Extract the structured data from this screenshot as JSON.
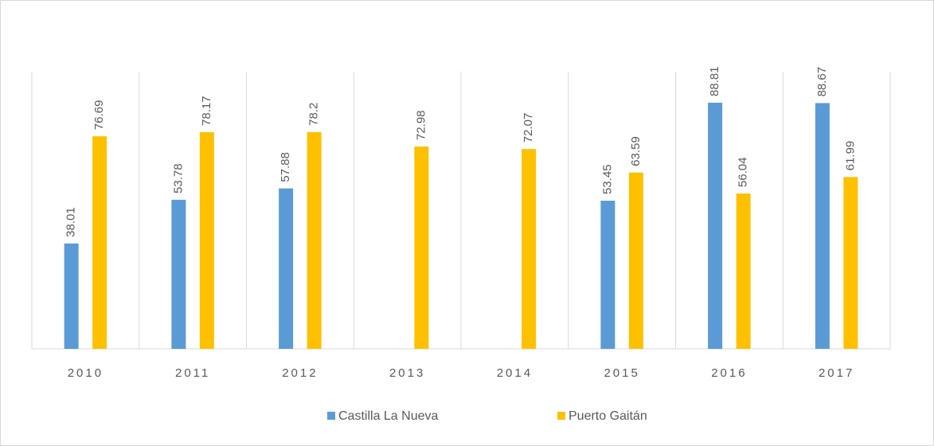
{
  "chart_data": {
    "type": "bar",
    "categories": [
      "2010",
      "2011",
      "2012",
      "2013",
      "2014",
      "2015",
      "2016",
      "2017"
    ],
    "series": [
      {
        "name": "Castilla La Nueva",
        "color": "#5b9bd5",
        "values": [
          38.01,
          53.78,
          57.88,
          null,
          null,
          53.45,
          88.81,
          88.67
        ]
      },
      {
        "name": "Puerto Gaitán",
        "color": "#ffc000",
        "values": [
          76.69,
          78.17,
          78.2,
          72.98,
          72.07,
          63.59,
          56.04,
          61.99
        ]
      }
    ],
    "ylim": [
      0,
      100
    ],
    "legend": "bottom"
  }
}
